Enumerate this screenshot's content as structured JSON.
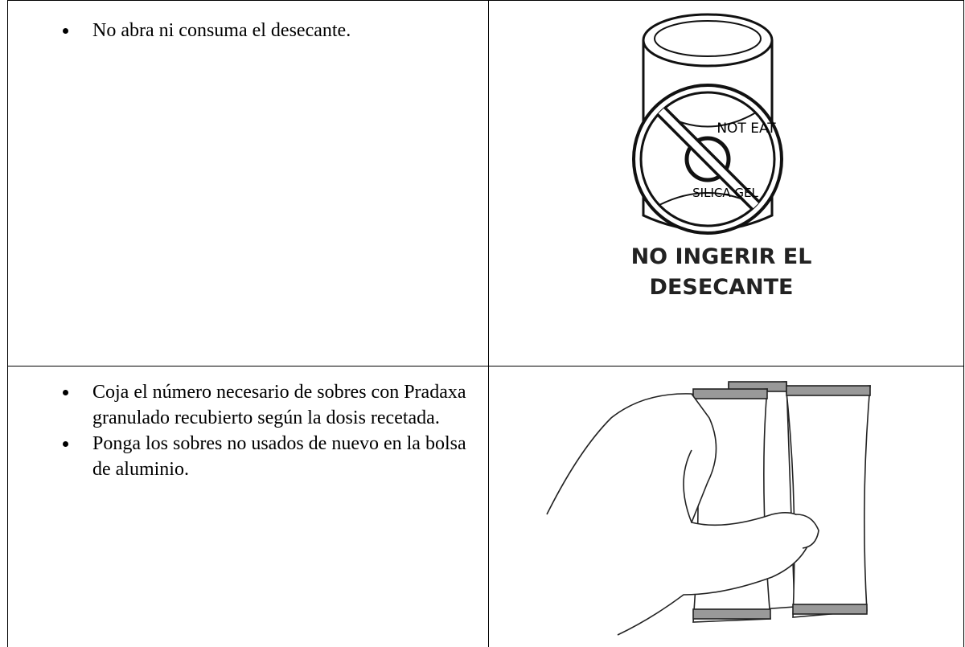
{
  "table": {
    "rows": [
      {
        "bullets": [
          "No abra ni consuma el desecante."
        ],
        "image": {
          "labels": [
            "NOT EAT",
            "SILICA GEL"
          ],
          "caption": [
            "NO INGERIR EL",
            "DESECANTE"
          ]
        }
      },
      {
        "bullets": [
          "Coja el número necesario de sobres con Pradaxa granulado recubierto según la dosis recetada.",
          "Ponga los sobres no usados de nuevo en la bolsa de aluminio."
        ]
      }
    ]
  }
}
